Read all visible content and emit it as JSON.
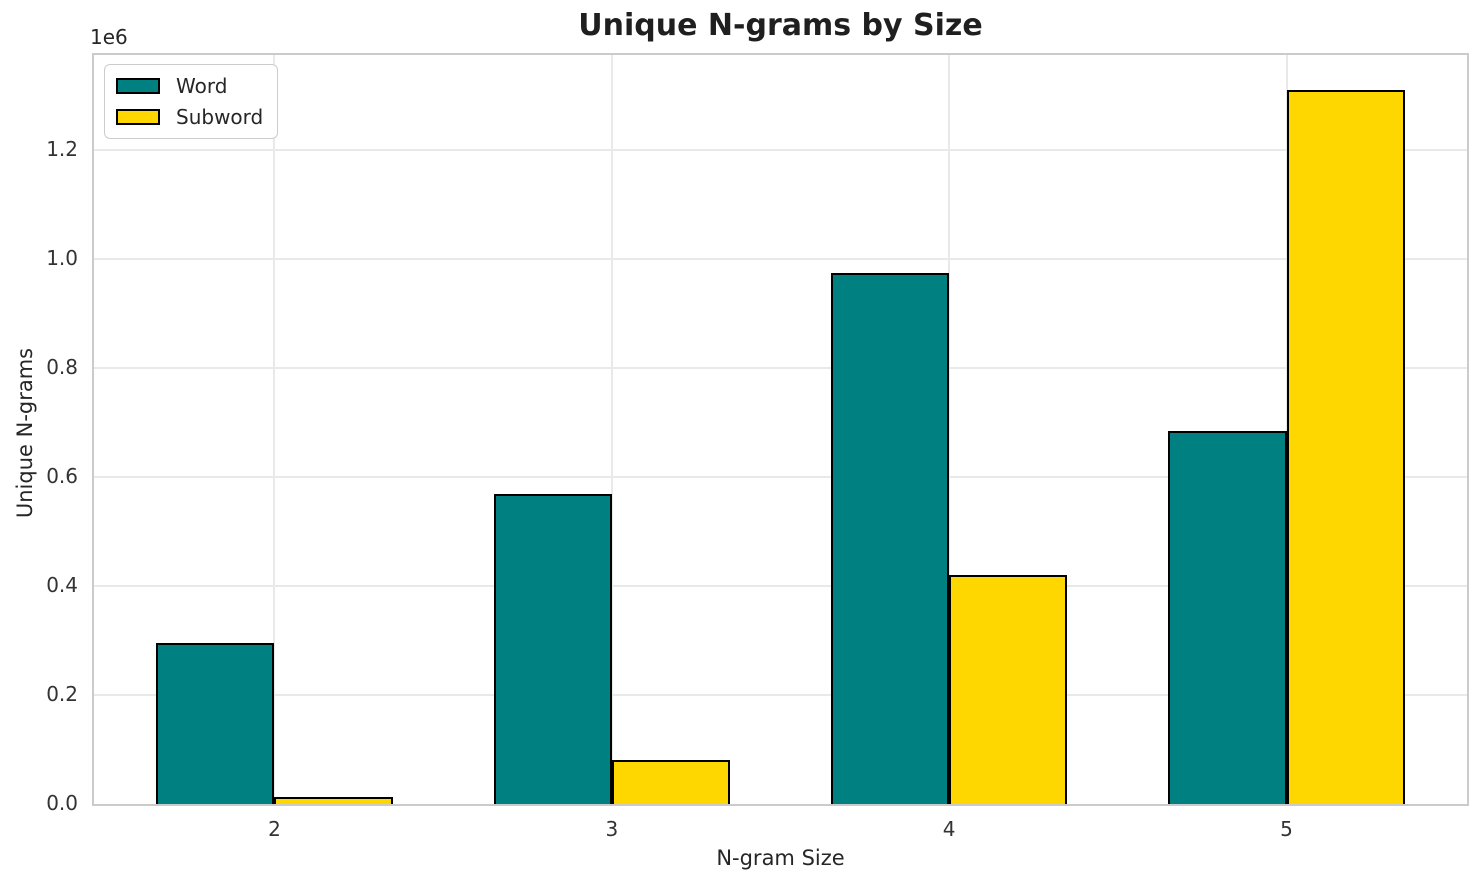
{
  "chart_data": {
    "type": "bar",
    "title": "Unique N-grams by Size",
    "xlabel": "N-gram Size",
    "ylabel": "Unique N-grams",
    "y_offset_label": "1e6",
    "categories": [
      "2",
      "3",
      "4",
      "5"
    ],
    "series": [
      {
        "name": "Word",
        "color": "#008080",
        "values": [
          295000,
          570000,
          975000,
          685000
        ]
      },
      {
        "name": "Subword",
        "color": "#ffd700",
        "values": [
          12000,
          80000,
          420000,
          1310000
        ]
      }
    ],
    "yticks": [
      0,
      200000,
      400000,
      600000,
      800000,
      1000000,
      1200000
    ],
    "ytick_labels": [
      "0.0",
      "0.2",
      "0.4",
      "0.6",
      "0.8",
      "1.0",
      "1.2"
    ],
    "ylim": [
      0,
      1375000
    ],
    "xlim": [
      -0.535,
      3.535
    ],
    "bar_width": 0.35,
    "bar_edge_color": "#000000",
    "grid": true,
    "legend_position": "upper left"
  }
}
